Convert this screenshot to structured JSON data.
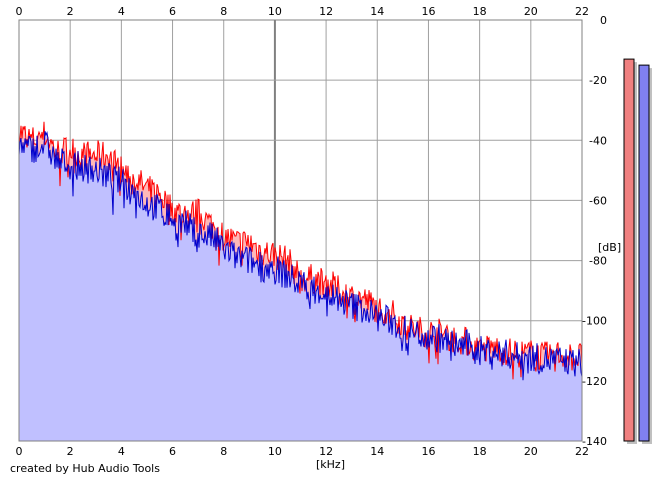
{
  "credit": "created by Hub Audio Tools",
  "chart_data": {
    "type": "area",
    "xlabel": "[kHz]",
    "ylabel": "[dB]",
    "xlim": [
      0,
      22
    ],
    "ylim": [
      -140,
      0
    ],
    "x_ticks": [
      "0",
      "2",
      "4",
      "6",
      "8",
      "10",
      "12",
      "14",
      "16",
      "18",
      "20",
      "22"
    ],
    "y_ticks": [
      "0",
      "-20",
      "-40",
      "-60",
      "-80",
      "-100",
      "-120",
      "-140"
    ],
    "grid": true,
    "colors": {
      "red": "#ff0000",
      "blue": "#0000cc",
      "fill": "#c0c0ff",
      "fill_red": "#ffb8b8"
    },
    "series": [
      {
        "x": [
          0,
          0.5,
          1,
          1.5,
          2,
          2.5,
          3,
          3.5,
          4,
          4.5,
          5,
          5.5,
          6,
          6.5,
          7,
          7.5,
          8,
          8.5,
          9,
          9.5,
          10,
          10.5,
          11,
          11.5,
          12,
          12.5,
          13,
          13.5,
          14,
          14.5,
          15,
          15.5,
          16,
          16.5,
          17,
          17.5,
          18,
          18.5,
          19,
          19.5,
          20,
          20.5,
          21,
          21.5,
          22
        ],
        "values": [
          -37,
          -40,
          -38,
          -44,
          -43,
          -45,
          -45,
          -45,
          -50,
          -53,
          -56,
          -58,
          -63,
          -65,
          -64,
          -68,
          -72,
          -74,
          -74,
          -77,
          -78,
          -80,
          -86,
          -86,
          -87,
          -90,
          -92,
          -93,
          -96,
          -97,
          -101,
          -103,
          -104,
          -104,
          -106,
          -107,
          -110,
          -109,
          -110,
          -111,
          -111,
          -112,
          -111,
          -112,
          -112
        ]
      },
      {
        "x": [
          0,
          0.5,
          1,
          1.5,
          2,
          2.5,
          3,
          3.5,
          4,
          4.5,
          5,
          5.5,
          6,
          6.5,
          7,
          7.5,
          8,
          8.5,
          9,
          9.5,
          10,
          10.5,
          11,
          11.5,
          12,
          12.5,
          13,
          13.5,
          14,
          14.5,
          15,
          15.5,
          16,
          16.5,
          17,
          17.5,
          18,
          18.5,
          19,
          19.5,
          20,
          20.5,
          21,
          21.5,
          22
        ],
        "values": [
          -42,
          -43,
          -41,
          -47,
          -48,
          -49,
          -50,
          -52,
          -54,
          -57,
          -61,
          -63,
          -66,
          -68,
          -71,
          -72,
          -76,
          -79,
          -80,
          -82,
          -83,
          -85,
          -88,
          -89,
          -91,
          -93,
          -95,
          -96,
          -99,
          -100,
          -103,
          -104,
          -105,
          -106,
          -108,
          -108,
          -110,
          -110,
          -111,
          -112,
          -112,
          -113,
          -113,
          -114,
          -114
        ]
      }
    ],
    "meters": [
      {
        "level_db": -13
      },
      {
        "level_db": -15
      }
    ]
  }
}
